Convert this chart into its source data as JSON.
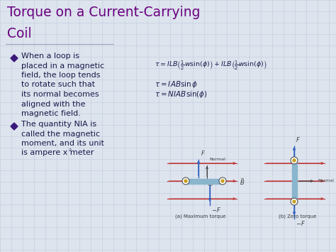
{
  "title_line1": "Torque on a Current-Carrying",
  "title_line2": "Coil",
  "title_color": "#6B0080",
  "bg_color": "#DDE4EE",
  "grid_color": "#C0CCDC",
  "bullet_color": "#3A1A7A",
  "text_color": "#1A1A4A",
  "bullet1_lines": [
    "When a loop is",
    "placed in a magnetic",
    "field, the loop tends",
    "to rotate such that",
    "its normal becomes",
    "aligned with the",
    "magnetic field."
  ],
  "bullet2_lines": [
    "The quantity NIA is",
    "called the magnetic",
    "moment, and its unit",
    "is ampere x meter"
  ],
  "eq1": "$\\tau = ILB\\left(\\frac{1}{2}w\\sin(\\phi)\\right) + ILB\\left(\\frac{1}{2}w\\sin(\\phi)\\right)$",
  "eq2": "$\\tau = IAB\\sin\\phi$",
  "eq3": "$\\tau = NIAB\\sin(\\phi)$",
  "label_max": "(a) Maximum torque",
  "label_zero": "(b) Zero torque",
  "arrow_blue": "#3060C0",
  "arrow_red": "#C03030",
  "coil_color": "#8AB5CC",
  "dot_color": "#C8A020",
  "dark_text": "#404040"
}
